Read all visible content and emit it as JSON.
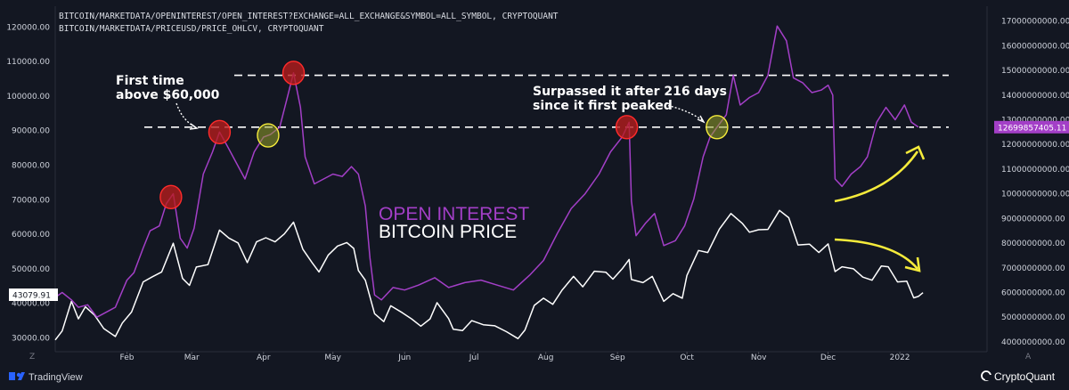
{
  "header": {
    "line1": "BITCOIN/MARKETDATA/OPENINTEREST/OPEN_INTEREST?EXCHANGE=ALL_EXCHANGE&SYMBOL=ALL_SYMBOL, CRYPTOQUANT",
    "line2": "BITCOIN/MARKETDATA/PRICEUSD/PRICE_OHLCV, CRYPTOQUANT"
  },
  "footer": {
    "tradingview_label": "TradingView",
    "cryptoquant_label": "CryptoQuant",
    "corner_left": "Z",
    "corner_right": "A"
  },
  "labels": {
    "price_current": "43079.91",
    "oi_current": "12699857405.11",
    "open_interest": "OPEN INTEREST",
    "bitcoin_price": "BITCOIN PRICE",
    "annotation_first_1": "First time",
    "annotation_first_2": "above $60,000",
    "annotation_surpassed_1": "Surpassed it after 216 days",
    "annotation_surpassed_2": "since it first peaked"
  },
  "colors": {
    "background": "#131722",
    "open_interest": "#a33fc7",
    "price": "#ffffff",
    "accent_yellow": "#f5eb3b",
    "highlight_red": "#b71c1c",
    "oi_badge": "#a33fc7"
  },
  "chart_data": {
    "type": "line",
    "x_ticks": [
      "Feb",
      "Mar",
      "Apr",
      "May",
      "Jun",
      "Jul",
      "Aug",
      "Sep",
      "Oct",
      "Nov",
      "Dec",
      "2022"
    ],
    "left_axis_ticks": [
      "120000.00",
      "110000.00",
      "100000.00",
      "90000.00",
      "80000.00",
      "70000.00",
      "60000.00",
      "50000.00",
      "40000.00",
      "30000.00"
    ],
    "right_axis_ticks": [
      "17000000000.00",
      "16000000000.00",
      "15000000000.00",
      "14000000000.00",
      "13000000000.00",
      "12000000000.00",
      "11000000000.00",
      "10000000000.00",
      "9000000000.00",
      "8000000000.00",
      "7000000000.00",
      "6000000000.00",
      "5000000000.00",
      "4000000000.00"
    ],
    "left_ylim": [
      26000,
      126000
    ],
    "right_ylim": [
      3600000000,
      17600000000
    ],
    "reference_lines_oi": [
      14800000000,
      12700000000
    ],
    "series": [
      {
        "name": "BITCOIN PRICE",
        "axis": "left",
        "points": [
          [
            "2021-01-01",
            29400
          ],
          [
            "2021-01-04",
            32000
          ],
          [
            "2021-01-08",
            40600
          ],
          [
            "2021-01-11",
            35500
          ],
          [
            "2021-01-14",
            39000
          ],
          [
            "2021-01-18",
            36600
          ],
          [
            "2021-01-22",
            32700
          ],
          [
            "2021-01-27",
            30400
          ],
          [
            "2021-01-30",
            34300
          ],
          [
            "2021-02-03",
            37500
          ],
          [
            "2021-02-08",
            46200
          ],
          [
            "2021-02-12",
            47700
          ],
          [
            "2021-02-16",
            49100
          ],
          [
            "2021-02-21",
            57400
          ],
          [
            "2021-02-25",
            47200
          ],
          [
            "2021-02-28",
            45200
          ],
          [
            "2021-03-03",
            50500
          ],
          [
            "2021-03-08",
            51200
          ],
          [
            "2021-03-13",
            61200
          ],
          [
            "2021-03-17",
            58900
          ],
          [
            "2021-03-21",
            57500
          ],
          [
            "2021-03-25",
            51800
          ],
          [
            "2021-03-29",
            57800
          ],
          [
            "2021-04-02",
            59000
          ],
          [
            "2021-04-06",
            57800
          ],
          [
            "2021-04-10",
            60100
          ],
          [
            "2021-04-14",
            63500
          ],
          [
            "2021-04-18",
            55700
          ],
          [
            "2021-04-22",
            51800
          ],
          [
            "2021-04-25",
            49100
          ],
          [
            "2021-04-29",
            54000
          ],
          [
            "2021-05-03",
            56600
          ],
          [
            "2021-05-07",
            57600
          ],
          [
            "2021-05-10",
            55900
          ],
          [
            "2021-05-12",
            49500
          ],
          [
            "2021-05-15",
            46700
          ],
          [
            "2021-05-19",
            37000
          ],
          [
            "2021-05-23",
            34700
          ],
          [
            "2021-05-26",
            39300
          ],
          [
            "2021-05-31",
            37300
          ],
          [
            "2021-06-04",
            35500
          ],
          [
            "2021-06-08",
            33400
          ],
          [
            "2021-06-12",
            35500
          ],
          [
            "2021-06-15",
            40200
          ],
          [
            "2021-06-20",
            35600
          ],
          [
            "2021-06-22",
            32500
          ],
          [
            "2021-06-26",
            32100
          ],
          [
            "2021-06-30",
            35000
          ],
          [
            "2021-07-05",
            33800
          ],
          [
            "2021-07-10",
            33500
          ],
          [
            "2021-07-15",
            31800
          ],
          [
            "2021-07-20",
            29800
          ],
          [
            "2021-07-23",
            32300
          ],
          [
            "2021-07-27",
            39400
          ],
          [
            "2021-07-31",
            41500
          ],
          [
            "2021-08-04",
            39700
          ],
          [
            "2021-08-08",
            43800
          ],
          [
            "2021-08-13",
            47800
          ],
          [
            "2021-08-17",
            44800
          ],
          [
            "2021-08-22",
            49300
          ],
          [
            "2021-08-27",
            49000
          ],
          [
            "2021-08-30",
            47000
          ],
          [
            "2021-09-03",
            50000
          ],
          [
            "2021-09-06",
            52700
          ],
          [
            "2021-09-07",
            46900
          ],
          [
            "2021-09-12",
            46000
          ],
          [
            "2021-09-16",
            47800
          ],
          [
            "2021-09-21",
            40600
          ],
          [
            "2021-09-25",
            42800
          ],
          [
            "2021-09-29",
            41500
          ],
          [
            "2021-10-01",
            48100
          ],
          [
            "2021-10-06",
            55300
          ],
          [
            "2021-10-10",
            54700
          ],
          [
            "2021-10-15",
            61500
          ],
          [
            "2021-10-20",
            66000
          ],
          [
            "2021-10-25",
            63100
          ],
          [
            "2021-10-28",
            60600
          ],
          [
            "2021-11-01",
            61300
          ],
          [
            "2021-11-05",
            61400
          ],
          [
            "2021-11-10",
            66900
          ],
          [
            "2021-11-14",
            64800
          ],
          [
            "2021-11-18",
            56900
          ],
          [
            "2021-11-23",
            57100
          ],
          [
            "2021-11-27",
            54700
          ],
          [
            "2021-12-01",
            57200
          ],
          [
            "2021-12-04",
            49200
          ],
          [
            "2021-12-07",
            50600
          ],
          [
            "2021-12-12",
            50000
          ],
          [
            "2021-12-16",
            47600
          ],
          [
            "2021-12-20",
            46700
          ],
          [
            "2021-12-24",
            50800
          ],
          [
            "2021-12-27",
            50600
          ],
          [
            "2021-12-31",
            46200
          ],
          [
            "2022-01-04",
            46400
          ],
          [
            "2022-01-07",
            41600
          ],
          [
            "2022-01-09",
            42000
          ],
          [
            "2022-01-11",
            43079.91
          ]
        ]
      },
      {
        "name": "OPEN INTEREST",
        "axis": "right",
        "points": [
          [
            "2021-01-01",
            5800000000
          ],
          [
            "2021-01-04",
            6000000000
          ],
          [
            "2021-01-08",
            5700000000
          ],
          [
            "2021-01-11",
            5400000000
          ],
          [
            "2021-01-15",
            5500000000
          ],
          [
            "2021-01-19",
            5000000000
          ],
          [
            "2021-01-23",
            5200000000
          ],
          [
            "2021-01-27",
            5400000000
          ],
          [
            "2021-02-01",
            6500000000
          ],
          [
            "2021-02-04",
            6800000000
          ],
          [
            "2021-02-08",
            7800000000
          ],
          [
            "2021-02-11",
            8500000000
          ],
          [
            "2021-02-15",
            8700000000
          ],
          [
            "2021-02-18",
            9600000000
          ],
          [
            "2021-02-21",
            10000000000
          ],
          [
            "2021-02-24",
            8200000000
          ],
          [
            "2021-02-27",
            7800000000
          ],
          [
            "2021-03-02",
            8600000000
          ],
          [
            "2021-03-06",
            10800000000
          ],
          [
            "2021-03-10",
            11700000000
          ],
          [
            "2021-03-13",
            12500000000
          ],
          [
            "2021-03-16",
            12000000000
          ],
          [
            "2021-03-20",
            11300000000
          ],
          [
            "2021-03-24",
            10600000000
          ],
          [
            "2021-03-28",
            11700000000
          ],
          [
            "2021-04-01",
            12300000000
          ],
          [
            "2021-04-04",
            12400000000
          ],
          [
            "2021-04-08",
            12700000000
          ],
          [
            "2021-04-11",
            13800000000
          ],
          [
            "2021-04-14",
            14900000000
          ],
          [
            "2021-04-17",
            13500000000
          ],
          [
            "2021-04-19",
            11500000000
          ],
          [
            "2021-04-23",
            10400000000
          ],
          [
            "2021-04-27",
            10600000000
          ],
          [
            "2021-05-01",
            10800000000
          ],
          [
            "2021-05-05",
            10700000000
          ],
          [
            "2021-05-09",
            11100000000
          ],
          [
            "2021-05-12",
            10800000000
          ],
          [
            "2021-05-15",
            9500000000
          ],
          [
            "2021-05-17",
            7400000000
          ],
          [
            "2021-05-19",
            5900000000
          ],
          [
            "2021-05-22",
            5700000000
          ],
          [
            "2021-05-27",
            6200000000
          ],
          [
            "2021-06-01",
            6100000000
          ],
          [
            "2021-06-07",
            6300000000
          ],
          [
            "2021-06-14",
            6600000000
          ],
          [
            "2021-06-20",
            6200000000
          ],
          [
            "2021-06-27",
            6400000000
          ],
          [
            "2021-07-04",
            6500000000
          ],
          [
            "2021-07-11",
            6300000000
          ],
          [
            "2021-07-18",
            6100000000
          ],
          [
            "2021-07-25",
            6700000000
          ],
          [
            "2021-07-31",
            7300000000
          ],
          [
            "2021-08-06",
            8400000000
          ],
          [
            "2021-08-12",
            9400000000
          ],
          [
            "2021-08-18",
            10000000000
          ],
          [
            "2021-08-24",
            10800000000
          ],
          [
            "2021-08-29",
            11700000000
          ],
          [
            "2021-09-03",
            12300000000
          ],
          [
            "2021-09-06",
            12900000000
          ],
          [
            "2021-09-07",
            9700000000
          ],
          [
            "2021-09-09",
            8300000000
          ],
          [
            "2021-09-13",
            8800000000
          ],
          [
            "2021-09-17",
            9200000000
          ],
          [
            "2021-09-21",
            7900000000
          ],
          [
            "2021-09-26",
            8100000000
          ],
          [
            "2021-09-30",
            8700000000
          ],
          [
            "2021-10-04",
            9800000000
          ],
          [
            "2021-10-08",
            11500000000
          ],
          [
            "2021-10-11",
            12300000000
          ],
          [
            "2021-10-14",
            12700000000
          ],
          [
            "2021-10-18",
            13200000000
          ],
          [
            "2021-10-21",
            14800000000
          ],
          [
            "2021-10-24",
            13600000000
          ],
          [
            "2021-10-28",
            13900000000
          ],
          [
            "2021-11-01",
            14100000000
          ],
          [
            "2021-11-05",
            14800000000
          ],
          [
            "2021-11-09",
            16800000000
          ],
          [
            "2021-11-13",
            16200000000
          ],
          [
            "2021-11-16",
            14700000000
          ],
          [
            "2021-11-20",
            14500000000
          ],
          [
            "2021-11-24",
            14100000000
          ],
          [
            "2021-11-28",
            14200000000
          ],
          [
            "2021-12-01",
            14400000000
          ],
          [
            "2021-12-03",
            14000000000
          ],
          [
            "2021-12-04",
            10600000000
          ],
          [
            "2021-12-07",
            10300000000
          ],
          [
            "2021-12-11",
            10800000000
          ],
          [
            "2021-12-15",
            11100000000
          ],
          [
            "2021-12-18",
            11500000000
          ],
          [
            "2021-12-22",
            12900000000
          ],
          [
            "2021-12-26",
            13500000000
          ],
          [
            "2021-12-30",
            13000000000
          ],
          [
            "2022-01-03",
            13600000000
          ],
          [
            "2022-01-06",
            12900000000
          ],
          [
            "2022-01-09",
            12699857405.11
          ]
        ]
      }
    ],
    "highlight_markers": [
      {
        "series": "OPEN INTEREST",
        "date": "2021-02-20",
        "color": "red"
      },
      {
        "series": "OPEN INTEREST",
        "date": "2021-03-13",
        "color": "red"
      },
      {
        "series": "OPEN INTEREST",
        "date": "2021-04-03",
        "color": "yellow"
      },
      {
        "series": "OPEN INTEREST",
        "date": "2021-04-14",
        "color": "red"
      },
      {
        "series": "OPEN INTEREST",
        "date": "2021-09-05",
        "color": "red"
      },
      {
        "series": "OPEN INTEREST",
        "date": "2021-10-14",
        "color": "yellow"
      }
    ]
  }
}
